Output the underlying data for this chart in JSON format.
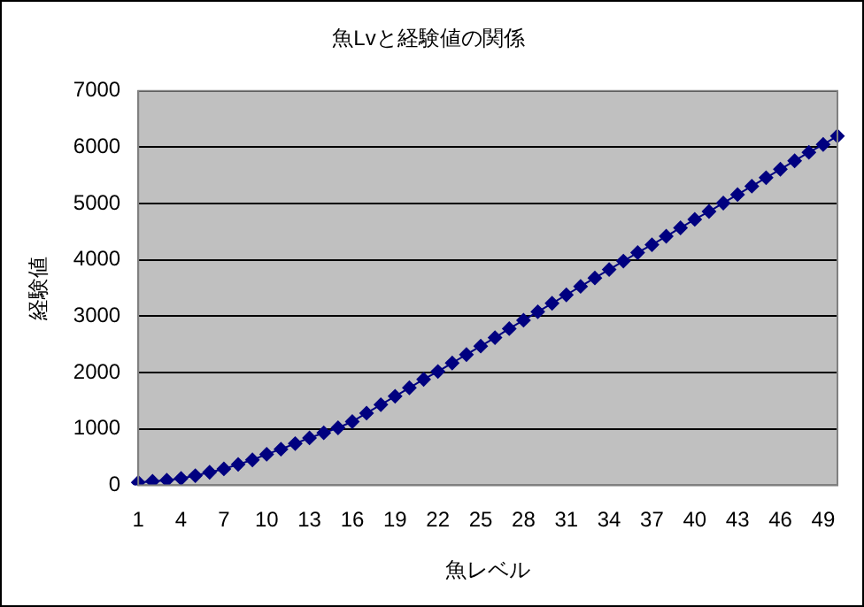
{
  "chart_data": {
    "type": "line",
    "title": "魚Lvと経験値の関係",
    "xlabel": "魚レベル",
    "ylabel": "経験値",
    "categories": [
      "1",
      null,
      null,
      "4",
      null,
      null,
      "7",
      null,
      null,
      "10",
      null,
      null,
      "13",
      null,
      null,
      "16",
      null,
      null,
      "19",
      null,
      null,
      "22",
      null,
      null,
      "25",
      null,
      null,
      "28",
      null,
      null,
      "31",
      null,
      null,
      "34",
      null,
      null,
      "37",
      null,
      null,
      "40",
      null,
      null,
      "43",
      null,
      null,
      "46",
      null,
      null,
      "49",
      null
    ],
    "series": [
      {
        "color": "#000080",
        "values": [
          50,
          70,
          90,
          120,
          170,
          230,
          290,
          370,
          450,
          550,
          640,
          740,
          840,
          930,
          1020,
          1130,
          1280,
          1430,
          1580,
          1730,
          1880,
          2020,
          2170,
          2320,
          2470,
          2620,
          2780,
          2930,
          3080,
          3230,
          3380,
          3530,
          3680,
          3830,
          3980,
          4130,
          4270,
          4420,
          4570,
          4720,
          4860,
          5010,
          5160,
          5310,
          5460,
          5610,
          5760,
          5910,
          6050,
          6200
        ]
      }
    ],
    "ylim": [
      0,
      7000
    ],
    "yticks": [
      0,
      1000,
      2000,
      3000,
      4000,
      5000,
      6000,
      7000
    ],
    "grid": "y",
    "legend": false,
    "marker": "diamond",
    "line_style": "solid"
  }
}
